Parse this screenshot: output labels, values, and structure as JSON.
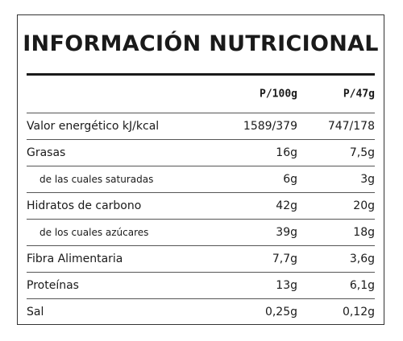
{
  "title": "INFORMACIÓN NUTRICIONAL",
  "table": {
    "columns": [
      "P/100g",
      "P/47g"
    ],
    "rows": [
      {
        "label": "Valor energético kJ/kcal",
        "values": [
          "1589/379",
          "747/178"
        ]
      },
      {
        "label": "Grasas",
        "values": [
          "16g",
          "7,5g"
        ]
      },
      {
        "label": "de las cuales saturadas",
        "values": [
          "6g",
          "3g"
        ],
        "sub": true
      },
      {
        "label": "Hidratos de carbono",
        "values": [
          "42g",
          "20g"
        ]
      },
      {
        "label": "de los cuales azúcares",
        "values": [
          "39g",
          "18g"
        ],
        "sub": true
      },
      {
        "label": "Fibra Alimentaria",
        "values": [
          "7,7g",
          "3,6g"
        ]
      },
      {
        "label": "Proteínas",
        "values": [
          "13g",
          "6,1g"
        ]
      },
      {
        "label": "Sal",
        "values": [
          "0,25g",
          "0,12g"
        ]
      }
    ]
  }
}
